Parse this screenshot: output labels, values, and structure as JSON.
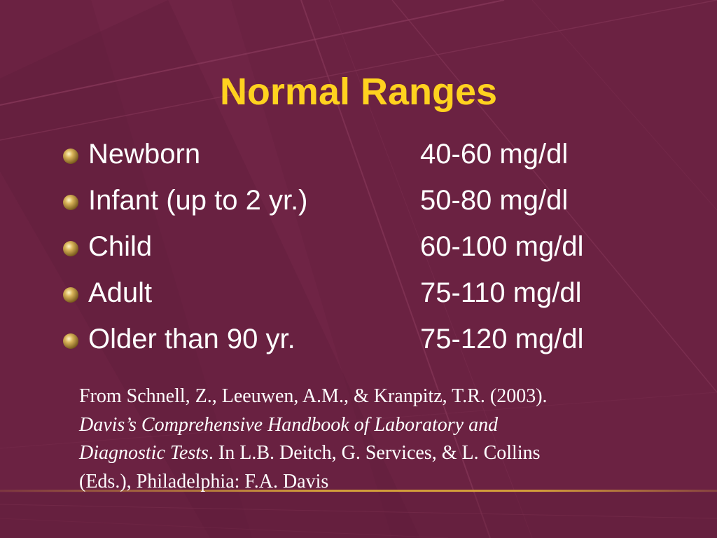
{
  "slide": {
    "title": "Normal Ranges",
    "rows": [
      {
        "label": "Newborn",
        "value": "40-60 mg/dl"
      },
      {
        "label": "Infant (up to 2 yr.)",
        "value": "50-80 mg/dl"
      },
      {
        "label": "Child",
        "value": "60-100 mg/dl"
      },
      {
        "label": "Adult",
        "value": "75-110 mg/dl"
      },
      {
        "label": "Older than 90 yr.",
        "value": "75-120 mg/dl"
      }
    ],
    "citation": {
      "line1": "From Schnell, Z., Leeuwen, A.M., & Kranpitz, T.R. (2003).",
      "book_title_a": "Davis’s Comprehensive Handbook of Laboratory and",
      "book_title_b": "Diagnostic Tests",
      "after_title": ".  In L.B. Deitch, G. Services, & L. Collins",
      "line4": "(Eds.), Philadelphia: F.A. Davis"
    }
  },
  "colors": {
    "background": "#6b2242",
    "title": "#ffd21f",
    "text": "#ffffff",
    "bullet": "#c9a24a",
    "accent_line": "#d8a43a"
  },
  "icons": {
    "bullet": "gold-sphere-bullet-icon"
  }
}
